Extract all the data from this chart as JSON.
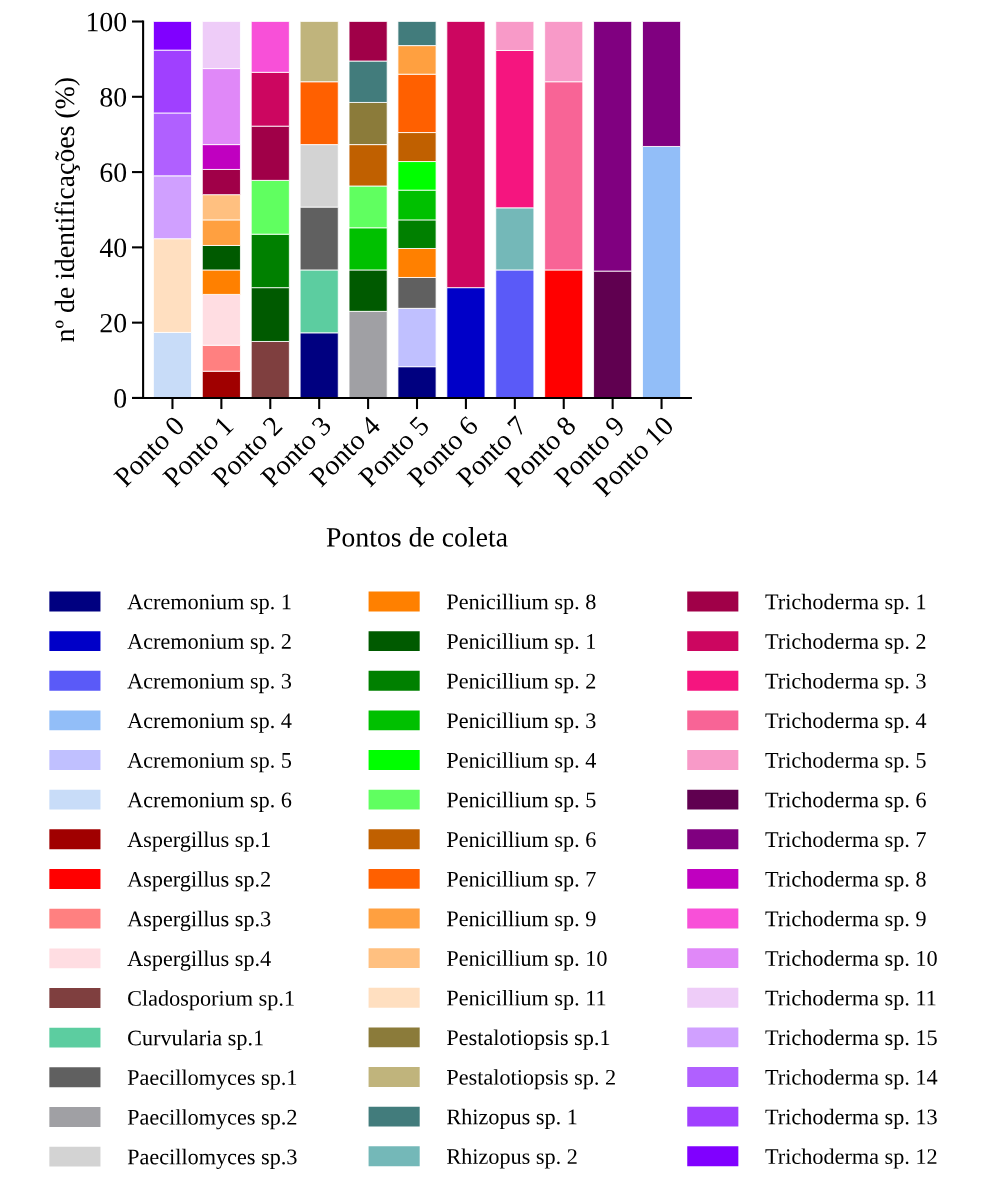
{
  "chart_data": {
    "type": "bar",
    "stacked": true,
    "xlabel": "Pontos de coleta",
    "ylabel": "nº de identificações (%)",
    "categories": [
      "Ponto 0",
      "Ponto 1",
      "Ponto 2",
      "Ponto 3",
      "Ponto 4",
      "Ponto 5",
      "Ponto 6",
      "Ponto 7",
      "Ponto 8",
      "Ponto 9",
      "Ponto 10"
    ],
    "ylim": [
      0,
      100
    ],
    "yticks": [
      0,
      20,
      40,
      60,
      80,
      100
    ],
    "grid": false,
    "legend": "bottom",
    "series": [
      {
        "name": "Acremonium sp. 1",
        "color": "#000080",
        "values": [
          null,
          null,
          null,
          17.3,
          null,
          8.3,
          null,
          null,
          null,
          null,
          null
        ]
      },
      {
        "name": "Acremonium sp. 2",
        "color": "#0000c8",
        "values": [
          null,
          null,
          null,
          null,
          null,
          null,
          29.3,
          null,
          null,
          null,
          null
        ]
      },
      {
        "name": "Acremonium sp. 3",
        "color": "#5a5af8",
        "values": [
          null,
          null,
          null,
          null,
          null,
          null,
          null,
          34,
          null,
          null,
          null
        ]
      },
      {
        "name": "Acremonium sp. 4",
        "color": "#92bef8",
        "values": [
          null,
          null,
          null,
          null,
          null,
          null,
          null,
          null,
          null,
          null,
          66.8
        ]
      },
      {
        "name": "Acremonium sp. 5",
        "color": "#c0c0ff",
        "values": [
          null,
          null,
          null,
          null,
          null,
          15.5,
          null,
          null,
          null,
          null,
          null
        ]
      },
      {
        "name": "Acremonium sp. 6",
        "color": "#c8dcf8",
        "values": [
          17.4,
          null,
          null,
          null,
          null,
          null,
          null,
          null,
          null,
          null,
          null
        ]
      },
      {
        "name": "Aspergillus sp.1",
        "color": "#a00000",
        "values": [
          null,
          7.1,
          null,
          null,
          null,
          null,
          null,
          null,
          null,
          null,
          null
        ]
      },
      {
        "name": "Aspergillus sp.2",
        "color": "#ff0000",
        "values": [
          null,
          null,
          null,
          null,
          null,
          null,
          null,
          null,
          34,
          null,
          null
        ]
      },
      {
        "name": "Aspergillus sp.3",
        "color": "#ff8080",
        "values": [
          null,
          6.9,
          null,
          null,
          null,
          null,
          null,
          null,
          null,
          null,
          null
        ]
      },
      {
        "name": "Aspergillus sp.4",
        "color": "#ffdde2",
        "values": [
          null,
          13.5,
          null,
          null,
          null,
          null,
          null,
          null,
          null,
          null,
          null
        ]
      },
      {
        "name": "Cladosporium sp.1",
        "color": "#7f3f3f",
        "values": [
          null,
          null,
          15,
          null,
          null,
          null,
          null,
          null,
          null,
          null,
          null
        ]
      },
      {
        "name": "Curvularia sp.1",
        "color": "#5ccda0",
        "values": [
          null,
          null,
          null,
          16.7,
          null,
          null,
          null,
          null,
          null,
          null,
          null
        ]
      },
      {
        "name": "Paecillomyces sp.1",
        "color": "#606060",
        "values": [
          null,
          null,
          null,
          16.7,
          null,
          8.2,
          null,
          null,
          null,
          null,
          null
        ]
      },
      {
        "name": "Paecillomyces sp.2",
        "color": "#a0a0a4",
        "values": [
          null,
          null,
          null,
          null,
          23,
          null,
          null,
          null,
          null,
          null,
          null
        ]
      },
      {
        "name": "Paecillomyces sp.3",
        "color": "#d3d3d3",
        "values": [
          null,
          null,
          null,
          16.6,
          null,
          null,
          null,
          null,
          null,
          null,
          null
        ]
      },
      {
        "name": "Penicillium sp. 8",
        "color": "#ff8000",
        "values": [
          null,
          6.5,
          null,
          null,
          null,
          7.7,
          null,
          null,
          null,
          null,
          null
        ]
      },
      {
        "name": "Penicillium sp. 1",
        "color": "#005a00",
        "values": [
          null,
          6.5,
          14.3,
          null,
          11,
          null,
          null,
          null,
          null,
          null,
          null
        ]
      },
      {
        "name": "Penicillium sp. 2",
        "color": "#008000",
        "values": [
          null,
          null,
          14.2,
          null,
          null,
          7.6,
          null,
          null,
          null,
          null,
          null
        ]
      },
      {
        "name": "Penicillium sp. 3",
        "color": "#00c000",
        "values": [
          null,
          null,
          null,
          null,
          11.2,
          7.9,
          null,
          null,
          null,
          null,
          null
        ]
      },
      {
        "name": "Penicillium sp. 4",
        "color": "#00ff00",
        "values": [
          null,
          null,
          null,
          null,
          null,
          7.6,
          null,
          null,
          null,
          null,
          null
        ]
      },
      {
        "name": "Penicillium sp. 5",
        "color": "#60ff60",
        "values": [
          null,
          null,
          14.3,
          null,
          11.1,
          null,
          null,
          null,
          null,
          null,
          null
        ]
      },
      {
        "name": "Penicillium sp. 6",
        "color": "#c06000",
        "values": [
          null,
          null,
          null,
          null,
          11,
          7.7,
          null,
          null,
          null,
          null,
          null
        ]
      },
      {
        "name": "Penicillium sp. 7",
        "color": "#ff6000",
        "values": [
          null,
          null,
          null,
          16.7,
          null,
          15.5,
          null,
          null,
          null,
          null,
          null
        ]
      },
      {
        "name": "Penicillium sp. 9",
        "color": "#ffa040",
        "values": [
          null,
          6.8,
          null,
          null,
          null,
          7.6,
          null,
          null,
          null,
          null,
          null
        ]
      },
      {
        "name": "Penicillium sp. 10",
        "color": "#ffc080",
        "values": [
          null,
          6.7,
          null,
          null,
          null,
          null,
          null,
          null,
          null,
          null,
          null
        ]
      },
      {
        "name": "Penicillium sp. 11",
        "color": "#ffdfc0",
        "values": [
          24.9,
          null,
          null,
          null,
          null,
          null,
          null,
          null,
          null,
          null,
          null
        ]
      },
      {
        "name": "Pestalotiopsis sp.1",
        "color": "#8b7b3a",
        "values": [
          null,
          null,
          null,
          null,
          11.2,
          null,
          null,
          null,
          null,
          null,
          null
        ]
      },
      {
        "name": "Pestalotiopsis sp. 2",
        "color": "#c0b47c",
        "values": [
          null,
          null,
          null,
          16,
          null,
          null,
          null,
          null,
          null,
          null,
          null
        ]
      },
      {
        "name": "Rhizopus sp. 1",
        "color": "#427c7c",
        "values": [
          null,
          null,
          null,
          null,
          11,
          6.4,
          null,
          null,
          null,
          null,
          null
        ]
      },
      {
        "name": "Rhizopus sp. 2",
        "color": "#74b8b8",
        "values": [
          null,
          null,
          null,
          null,
          null,
          null,
          null,
          16.5,
          null,
          null,
          null
        ]
      },
      {
        "name": "Trichoderma sp. 1",
        "color": "#a00048",
        "values": [
          null,
          6.7,
          14.4,
          null,
          10.5,
          null,
          null,
          null,
          null,
          null,
          null
        ]
      },
      {
        "name": "Trichoderma sp. 2",
        "color": "#cc0660",
        "values": [
          null,
          null,
          14.3,
          null,
          null,
          null,
          70.7,
          null,
          null,
          null,
          null
        ]
      },
      {
        "name": "Trichoderma sp. 3",
        "color": "#f5157f",
        "values": [
          null,
          null,
          null,
          null,
          null,
          null,
          null,
          41.8,
          null,
          null,
          null
        ]
      },
      {
        "name": "Trichoderma sp. 4",
        "color": "#f86496",
        "values": [
          null,
          null,
          null,
          null,
          null,
          null,
          null,
          null,
          50,
          null,
          null
        ]
      },
      {
        "name": "Trichoderma sp. 5",
        "color": "#f89ac8",
        "values": [
          null,
          null,
          null,
          null,
          null,
          null,
          null,
          7.7,
          16,
          null,
          null
        ]
      },
      {
        "name": "Trichoderma sp. 6",
        "color": "#600050",
        "values": [
          null,
          null,
          null,
          null,
          null,
          null,
          null,
          null,
          null,
          33.7,
          null
        ]
      },
      {
        "name": "Trichoderma sp. 7",
        "color": "#800080",
        "values": [
          null,
          null,
          null,
          null,
          null,
          null,
          null,
          null,
          null,
          66.3,
          33.2
        ]
      },
      {
        "name": "Trichoderma sp. 8",
        "color": "#c000c0",
        "values": [
          null,
          6.6,
          null,
          null,
          null,
          null,
          null,
          null,
          null,
          null,
          null
        ]
      },
      {
        "name": "Trichoderma sp. 9",
        "color": "#f850d8",
        "values": [
          null,
          null,
          13.5,
          null,
          null,
          null,
          null,
          null,
          null,
          null,
          null
        ]
      },
      {
        "name": "Trichoderma sp. 10",
        "color": "#e088f8",
        "values": [
          null,
          20.2,
          null,
          null,
          null,
          null,
          null,
          null,
          null,
          null,
          null
        ]
      },
      {
        "name": "Trichoderma sp. 11",
        "color": "#eeccf8",
        "values": [
          null,
          12.5,
          null,
          null,
          null,
          null,
          null,
          null,
          null,
          null,
          null
        ]
      },
      {
        "name": "Trichoderma sp. 15",
        "color": "#d0a0ff",
        "values": [
          16.7,
          null,
          null,
          null,
          null,
          null,
          null,
          null,
          null,
          null,
          null
        ]
      },
      {
        "name": "Trichoderma sp. 14",
        "color": "#b060ff",
        "values": [
          16.7,
          null,
          null,
          null,
          null,
          null,
          null,
          null,
          null,
          null,
          null
        ]
      },
      {
        "name": "Trichoderma sp. 13",
        "color": "#a040ff",
        "values": [
          16.7,
          null,
          null,
          null,
          null,
          null,
          null,
          null,
          null,
          null,
          null
        ]
      },
      {
        "name": "Trichoderma sp. 12",
        "color": "#8000ff",
        "values": [
          7.6,
          null,
          null,
          null,
          null,
          null,
          null,
          null,
          null,
          null,
          null
        ]
      }
    ]
  }
}
